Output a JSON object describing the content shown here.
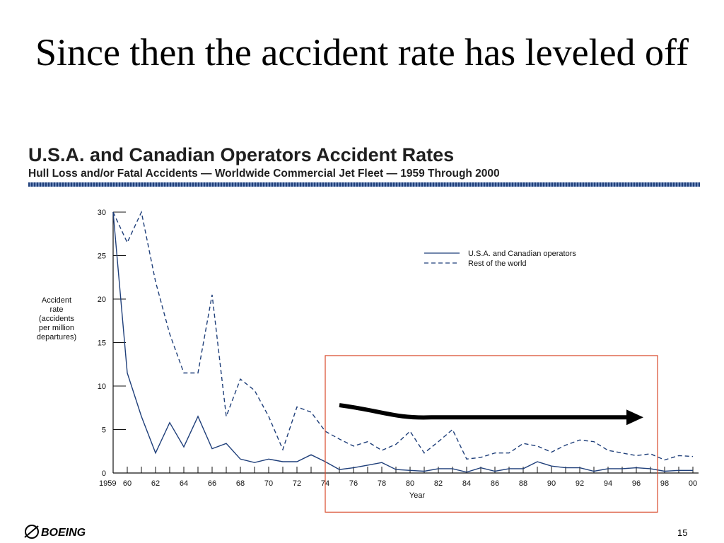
{
  "slide": {
    "title": "Since then the accident rate has leveled off",
    "page_number": "15",
    "logo_text": "BOEING"
  },
  "chart_data": {
    "type": "line",
    "title": "U.S.A. and Canadian Operators Accident Rates",
    "subtitle": "Hull Loss and/or Fatal Accidents — Worldwide Commercial Jet Fleet — 1959 Through 2000",
    "xlabel": "Year",
    "ylabel": [
      "Accident",
      "rate",
      "(accidents",
      "per million",
      "departures)"
    ],
    "xlim": [
      1959,
      2000
    ],
    "ylim": [
      0,
      30
    ],
    "x_ticks": [
      {
        "value": 1959,
        "label": "1959"
      },
      {
        "value": 1960,
        "label": "60"
      },
      {
        "value": 1962,
        "label": "62"
      },
      {
        "value": 1964,
        "label": "64"
      },
      {
        "value": 1966,
        "label": "66"
      },
      {
        "value": 1968,
        "label": "68"
      },
      {
        "value": 1970,
        "label": "70"
      },
      {
        "value": 1972,
        "label": "72"
      },
      {
        "value": 1974,
        "label": "74"
      },
      {
        "value": 1976,
        "label": "76"
      },
      {
        "value": 1978,
        "label": "78"
      },
      {
        "value": 1980,
        "label": "80"
      },
      {
        "value": 1982,
        "label": "82"
      },
      {
        "value": 1984,
        "label": "84"
      },
      {
        "value": 1986,
        "label": "86"
      },
      {
        "value": 1988,
        "label": "88"
      },
      {
        "value": 1990,
        "label": "90"
      },
      {
        "value": 1992,
        "label": "92"
      },
      {
        "value": 1994,
        "label": "94"
      },
      {
        "value": 1996,
        "label": "96"
      },
      {
        "value": 1998,
        "label": "98"
      },
      {
        "value": 2000,
        "label": "00"
      }
    ],
    "y_ticks": [
      0,
      5,
      10,
      15,
      20,
      25,
      30
    ],
    "legend_position": "top-right",
    "grid": false,
    "series": [
      {
        "name": "U.S.A. and Canadian operators",
        "style": "solid",
        "color": "#1f3f7a",
        "x": [
          1959,
          1960,
          1961,
          1962,
          1963,
          1964,
          1965,
          1966,
          1967,
          1968,
          1969,
          1970,
          1971,
          1972,
          1973,
          1974,
          1975,
          1976,
          1977,
          1978,
          1979,
          1980,
          1981,
          1982,
          1983,
          1984,
          1985,
          1986,
          1987,
          1988,
          1989,
          1990,
          1991,
          1992,
          1993,
          1994,
          1995,
          1996,
          1997,
          1998,
          1999,
          2000
        ],
        "y": [
          30,
          11.5,
          6.5,
          2.3,
          5.8,
          3.0,
          6.5,
          2.8,
          3.4,
          1.6,
          1.2,
          1.6,
          1.3,
          1.3,
          2.1,
          1.3,
          0.4,
          0.6,
          0.9,
          1.2,
          0.4,
          0.3,
          0.2,
          0.5,
          0.5,
          0.1,
          0.6,
          0.2,
          0.5,
          0.5,
          1.3,
          0.8,
          0.6,
          0.6,
          0.2,
          0.5,
          0.5,
          0.6,
          0.5,
          0.2,
          0.3,
          0.3
        ]
      },
      {
        "name": "Rest of the world",
        "style": "dashed",
        "color": "#1f3f7a",
        "x": [
          1959,
          1960,
          1961,
          1962,
          1963,
          1964,
          1965,
          1966,
          1967,
          1968,
          1969,
          1970,
          1971,
          1972,
          1973,
          1974,
          1975,
          1976,
          1977,
          1978,
          1979,
          1980,
          1981,
          1982,
          1983,
          1984,
          1985,
          1986,
          1987,
          1988,
          1989,
          1990,
          1991,
          1992,
          1993,
          1994,
          1995,
          1996,
          1997,
          1998,
          1999,
          2000
        ],
        "y": [
          30,
          26.5,
          30,
          22,
          16,
          11.5,
          11.5,
          20.5,
          6.5,
          10.8,
          9.5,
          6.5,
          2.7,
          7.6,
          7.0,
          4.8,
          3.9,
          3.1,
          3.6,
          2.6,
          3.3,
          4.8,
          2.3,
          3.6,
          5.0,
          1.6,
          1.8,
          2.3,
          2.3,
          3.4,
          3.1,
          2.4,
          3.2,
          3.8,
          3.6,
          2.6,
          2.3,
          2.0,
          2.2,
          1.5,
          2.0,
          1.9
        ]
      }
    ],
    "annotations": {
      "highlight_box": {
        "x": [
          1974,
          1997.5
        ],
        "y": [
          -4.5,
          13.5
        ],
        "color": "#d94a2b"
      },
      "trend_arrow": {
        "x": [
          1975,
          1996.5
        ],
        "y": [
          7.8,
          6.4
        ],
        "color": "#000000"
      }
    }
  }
}
